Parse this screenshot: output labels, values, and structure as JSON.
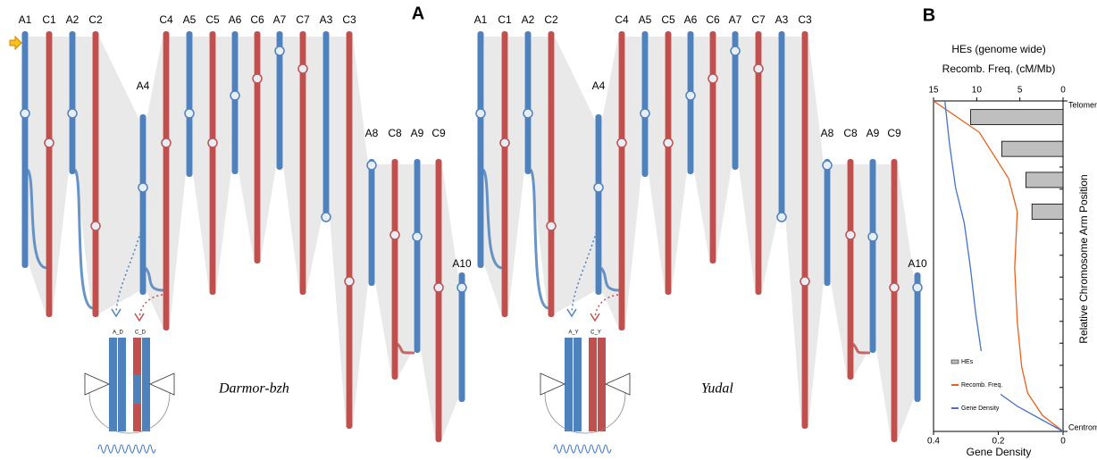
{
  "panel_a": {
    "label": "A",
    "colors": {
      "A": "#4f81bd",
      "C": "#c0504d"
    },
    "genomes": [
      {
        "name": "Darmor-bzh",
        "inset_labels": [
          "A_D",
          "C_D"
        ],
        "chromosomes": [
          "A1",
          "C1",
          "A2",
          "C2",
          "A4",
          "C4",
          "A5",
          "C5",
          "A6",
          "C6",
          "A7",
          "C7",
          "A3",
          "C3",
          "A8",
          "C8",
          "A9",
          "C9",
          "A10"
        ]
      },
      {
        "name": "Yudal",
        "inset_labels": [
          "A_Y",
          "C_Y"
        ],
        "chromosomes": [
          "A1",
          "C1",
          "A2",
          "C2",
          "A4",
          "C4",
          "A5",
          "C5",
          "A6",
          "C6",
          "A7",
          "C7",
          "A3",
          "C3",
          "A8",
          "C8",
          "A9",
          "C9",
          "A10"
        ]
      }
    ]
  },
  "chart_data": {
    "type": "combo",
    "label": "B",
    "title": "HEs (genome wide)",
    "subtitle": "Recomb. Freq. (cM/Mb)",
    "xlabel": "Gene Density",
    "ylabel": "Relative Chromosome Arm Position",
    "xlim": [
      15,
      0
    ],
    "xticks": [
      15,
      10,
      5,
      0
    ],
    "x2lim": [
      0.4,
      0
    ],
    "x2ticks": [
      0.4,
      0.2,
      0
    ],
    "ylim": [
      0,
      1
    ],
    "yticks": [
      {
        "value": 0,
        "label": "Telomere"
      },
      {
        "value": 1,
        "label": "Centromere"
      }
    ],
    "yminor": [
      0.067,
      0.133,
      0.2,
      0.267,
      0.333,
      0.4,
      0.467,
      0.533,
      0.6,
      0.667,
      0.733,
      0.8,
      0.867,
      0.933
    ],
    "series": [
      {
        "name": "HEs",
        "type": "bar",
        "axis": "x",
        "color": "#bfbfbf",
        "positions": [
          0.049,
          0.145,
          0.239,
          0.335
        ],
        "values": [
          10.7,
          7.1,
          4.3,
          3.6
        ]
      },
      {
        "name": "Recomb. Freq.",
        "type": "line",
        "axis": "x",
        "color": "#e8601c",
        "positions": [
          0,
          0.095,
          0.235,
          0.335,
          0.505,
          0.668,
          0.803,
          0.884,
          0.951,
          1
        ],
        "values": [
          15,
          9.7,
          6.3,
          5.3,
          5.6,
          5.3,
          4.8,
          4.1,
          2.4,
          0
        ]
      },
      {
        "name": "Gene Density",
        "type": "line",
        "axis": "x2",
        "color": "#4472c4",
        "positions": [
          0,
          0.127,
          0.262,
          0.37,
          0.505,
          0.641,
          0.776,
          0.857,
          0.924,
          1
        ],
        "values": [
          0.365,
          0.351,
          0.332,
          0.305,
          0.286,
          0.27,
          0.25,
          0.237,
          0.141,
          0
        ]
      }
    ]
  }
}
